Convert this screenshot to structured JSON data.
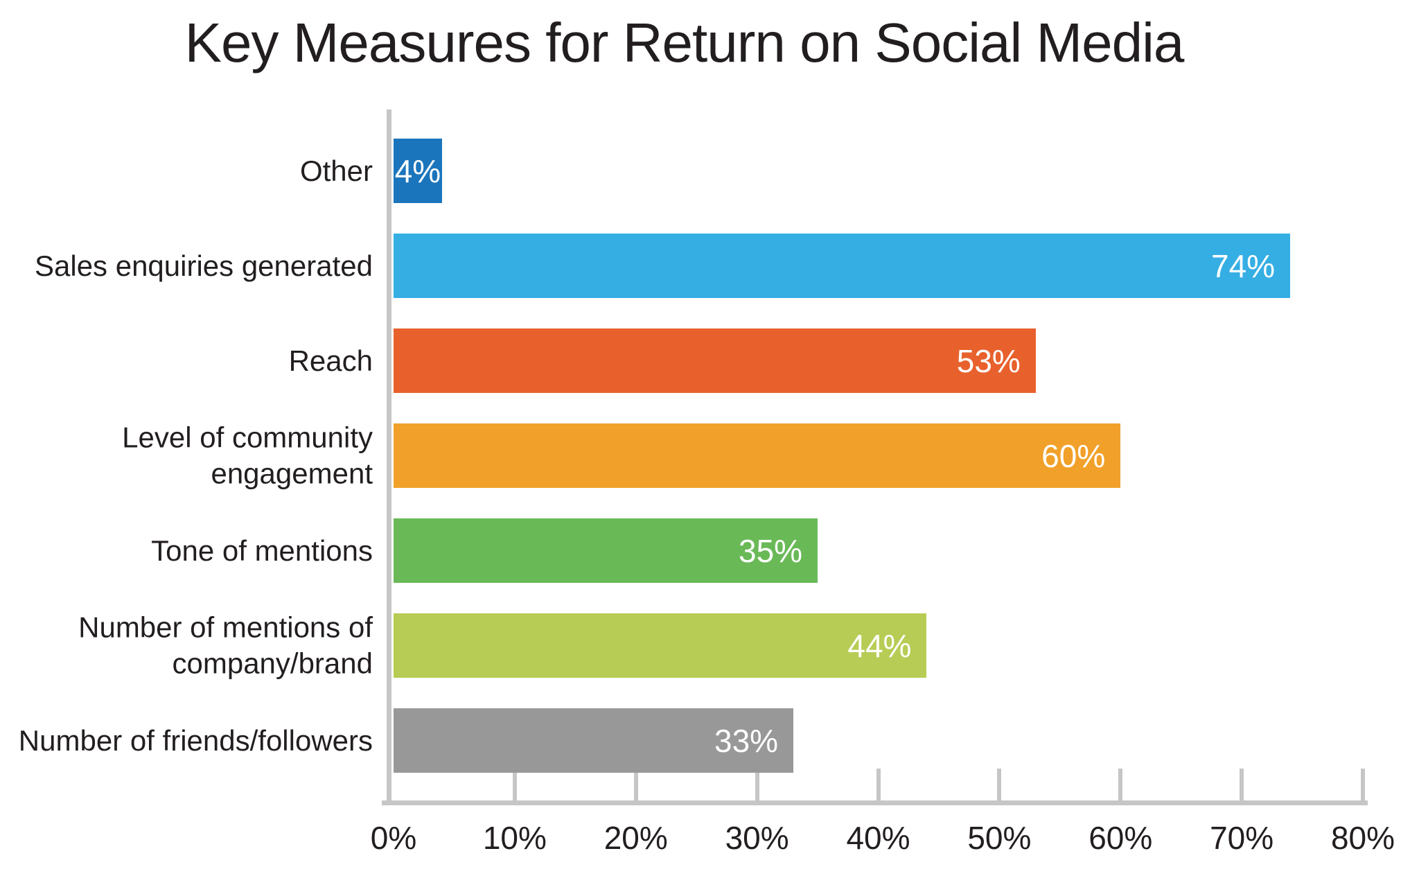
{
  "title": "Key Measures for Return on Social Media",
  "chart_data": {
    "type": "bar",
    "orientation": "horizontal",
    "title": "Key Measures for Return on Social Media",
    "categories": [
      "Other",
      "Sales enquiries generated",
      "Reach",
      "Level of community engagement",
      "Tone of mentions",
      "Number of mentions of company/brand",
      "Number of friends/followers"
    ],
    "values": [
      4,
      74,
      53,
      60,
      35,
      44,
      33
    ],
    "value_labels": [
      "4%",
      "74%",
      "53%",
      "60%",
      "35%",
      "44%",
      "33%"
    ],
    "bar_colors": [
      "#1b75bc",
      "#35aee4",
      "#e8612c",
      "#f1a12a",
      "#69b957",
      "#b7cc55",
      "#989898"
    ],
    "xlabel": "",
    "ylabel": "",
    "xlim": [
      0,
      80
    ],
    "x_tick_values": [
      0,
      10,
      20,
      30,
      40,
      50,
      60,
      70,
      80
    ],
    "x_tick_labels": [
      "0%",
      "10%",
      "20%",
      "30%",
      "40%",
      "50%",
      "60%",
      "70%",
      "80%"
    ],
    "grid": "off",
    "legend": "none",
    "axis_color": "#c6c6c6",
    "text_color": "#221e1f",
    "value_label_color": "#ffffff"
  }
}
